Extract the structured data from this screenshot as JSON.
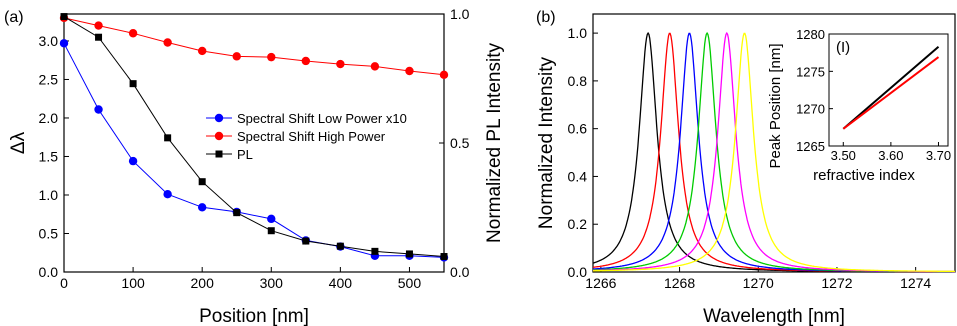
{
  "chart_data": [
    {
      "panel_label": "(a)",
      "type": "line",
      "xlabel": "Position [nm]",
      "ylabel_left": "Δλ",
      "ylabel_right": "Normalized PL Intensity",
      "xlim": [
        0,
        550
      ],
      "ylim_left": [
        0,
        3.35
      ],
      "ylim_right": [
        0,
        1.0
      ],
      "xticks": [
        "0",
        "100",
        "200",
        "300",
        "400",
        "500"
      ],
      "yticks_left": [
        "0.0",
        "0.5",
        "1.0",
        "1.5",
        "2.0",
        "2.5",
        "3.0"
      ],
      "yticks_right": [
        "0.0",
        "0.5",
        "1.0"
      ],
      "legend_position": "center-right",
      "series": [
        {
          "name": "Spectral Shift Low Power x10",
          "axis": "left",
          "color": "#0000ff",
          "marker": "circle",
          "x": [
            0,
            50,
            100,
            150,
            200,
            250,
            300,
            350,
            400,
            450,
            500,
            550
          ],
          "y": [
            2.97,
            2.11,
            1.44,
            1.01,
            0.84,
            0.78,
            0.69,
            0.41,
            0.33,
            0.21,
            0.21,
            0.19
          ]
        },
        {
          "name": "Spectral Shift High Power",
          "axis": "left",
          "color": "#ff0000",
          "marker": "circle",
          "x": [
            0,
            50,
            100,
            150,
            200,
            250,
            300,
            350,
            400,
            450,
            500,
            550
          ],
          "y": [
            3.3,
            3.2,
            3.1,
            2.98,
            2.87,
            2.8,
            2.79,
            2.74,
            2.7,
            2.67,
            2.61,
            2.56
          ]
        },
        {
          "name": "PL",
          "axis": "right",
          "color": "#000000",
          "marker": "square",
          "x": [
            0,
            50,
            100,
            150,
            200,
            250,
            300,
            350,
            400,
            450,
            500,
            550
          ],
          "y": [
            0.99,
            0.91,
            0.73,
            0.52,
            0.35,
            0.23,
            0.16,
            0.12,
            0.1,
            0.08,
            0.07,
            0.06
          ]
        }
      ]
    },
    {
      "panel_label": "(b)",
      "type": "line",
      "xlabel": "Wavelength [nm]",
      "ylabel": "Normalized Intensity",
      "xlim": [
        1265.8,
        1275.0
      ],
      "ylim": [
        0,
        1.08
      ],
      "xticks": [
        "1266",
        "1268",
        "1270",
        "1272",
        "1274"
      ],
      "yticks": [
        "0.0",
        "0.2",
        "0.4",
        "0.6",
        "0.8",
        "1.0"
      ],
      "lineshape": "lorentzian",
      "series": [
        {
          "color": "#000000",
          "peak": 1267.2,
          "fwhm": 0.55
        },
        {
          "color": "#ff0000",
          "peak": 1267.75,
          "fwhm": 0.55
        },
        {
          "color": "#0000ff",
          "peak": 1268.25,
          "fwhm": 0.55
        },
        {
          "color": "#00cc00",
          "peak": 1268.7,
          "fwhm": 0.55
        },
        {
          "color": "#ff00ff",
          "peak": 1269.2,
          "fwhm": 0.55
        },
        {
          "color": "#ffff00",
          "peak": 1269.65,
          "fwhm": 0.55
        }
      ],
      "inset": {
        "label": "(I)",
        "xlabel": "refractive index",
        "ylabel": "Peak Position [nm]",
        "xlim": [
          3.47,
          3.72
        ],
        "ylim": [
          1265,
          1280
        ],
        "xticks": [
          "3.50",
          "3.60",
          "3.70"
        ],
        "yticks": [
          "1265",
          "1270",
          "1275",
          "1280"
        ],
        "series": [
          {
            "color": "#000000",
            "x": [
              3.5,
              3.7
            ],
            "y": [
              1267.3,
              1278.3
            ]
          },
          {
            "color": "#ff0000",
            "x": [
              3.5,
              3.7
            ],
            "y": [
              1267.3,
              1276.9
            ]
          }
        ]
      }
    }
  ]
}
